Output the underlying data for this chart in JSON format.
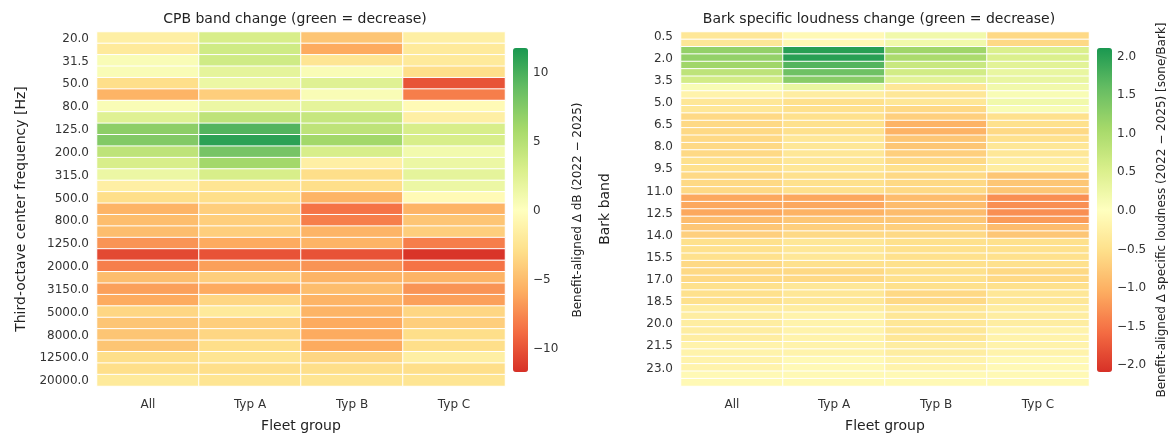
{
  "chart_data": [
    {
      "type": "heatmap",
      "title": "CPB band change (green = decrease)",
      "xlabel": "Fleet group",
      "ylabel": "Third-octave center frequency [Hz]",
      "clabel": "Benefit-aligned Δ dB (2022 − 2025)",
      "categories": [
        "All",
        "Typ A",
        "Typ B",
        "Typ C"
      ],
      "y_categories": [
        "20.0",
        null,
        "31.5",
        null,
        "50.0",
        null,
        "80.0",
        null,
        "125.0",
        null,
        "200.0",
        null,
        "315.0",
        null,
        "500.0",
        null,
        "800.0",
        null,
        "1250.0",
        null,
        "2000.0",
        null,
        "3150.0",
        null,
        "5000.0",
        null,
        "8000.0",
        null,
        "12500.0",
        null,
        "20000.0"
      ],
      "clim": [
        -11.7,
        11.7
      ],
      "cticks": [
        -10,
        -5,
        0,
        5,
        10
      ],
      "cells": [
        [
          -1.5,
          3,
          -4.5,
          -1.5
        ],
        [
          -2,
          3.5,
          -6,
          -2
        ],
        [
          0.5,
          3.5,
          -2.5,
          -2
        ],
        [
          0.5,
          2,
          0.5,
          -3
        ],
        [
          -3,
          1.5,
          2.5,
          -10
        ],
        [
          -5.5,
          -4,
          0.5,
          -8
        ],
        [
          0.5,
          1.5,
          2,
          -0.5
        ],
        [
          2.5,
          4.5,
          4,
          -1.5
        ],
        [
          7,
          9.5,
          4.5,
          3
        ],
        [
          7.5,
          11,
          6,
          3
        ],
        [
          4.5,
          8,
          3,
          1
        ],
        [
          3,
          6,
          -1.5,
          1.5
        ],
        [
          1.5,
          3,
          -3,
          2
        ],
        [
          -1.5,
          -2.5,
          -3,
          1.5
        ],
        [
          -3,
          -3,
          -5.5,
          -0.5
        ],
        [
          -5.5,
          -4,
          -8.5,
          -5.5
        ],
        [
          -5,
          -4,
          -8,
          -4.5
        ],
        [
          -5,
          -4,
          -5.5,
          -4
        ],
        [
          -7,
          -6,
          -5.5,
          -8
        ],
        [
          -10.5,
          -10,
          -10,
          -11.5
        ],
        [
          -8,
          -6.5,
          -7,
          -8.5
        ],
        [
          -5,
          -4,
          -5.5,
          -5.5
        ],
        [
          -6.5,
          -6,
          -5,
          -7
        ],
        [
          -6,
          -3.5,
          -5.5,
          -6.5
        ],
        [
          -3.5,
          -2,
          -5.5,
          -3.5
        ],
        [
          -4.5,
          -4,
          -6,
          -4
        ],
        [
          -4.5,
          -3.5,
          -6,
          -3
        ],
        [
          -4.5,
          -3,
          -6,
          -3
        ],
        [
          -3,
          -2.5,
          -3.5,
          -1.5
        ],
        [
          -3,
          -3,
          -3,
          -3
        ],
        [
          -2,
          -2.5,
          -2.5,
          -2.5
        ]
      ]
    },
    {
      "type": "heatmap",
      "title": "Bark specific loudness change (green = decrease)",
      "xlabel": "Fleet group",
      "ylabel": "Bark band",
      "clabel": "Benefit-aligned Δ specific loudness (2022 − 2025) [sone/Bark]",
      "categories": [
        "All",
        "Typ A",
        "Typ B",
        "Typ C"
      ],
      "y_categories": [
        "0.5",
        null,
        null,
        "2.0",
        null,
        null,
        "3.5",
        null,
        null,
        "5.0",
        null,
        null,
        "6.5",
        null,
        null,
        "8.0",
        null,
        null,
        "9.5",
        null,
        null,
        "11.0",
        null,
        null,
        "12.5",
        null,
        null,
        "14.0",
        null,
        null,
        "15.5",
        null,
        null,
        "17.0",
        null,
        null,
        "18.5",
        null,
        null,
        "20.0",
        null,
        null,
        "21.5",
        null,
        null,
        "23.0",
        null,
        null
      ],
      "clim": [
        -2.1,
        2.1
      ],
      "cticks": [
        {
          "value": -2,
          "label": "−2.0"
        },
        -1.5,
        {
          "value": -1,
          "label": "−1.0"
        },
        -0.5,
        {
          "value": 0,
          "label": "0.0"
        },
        0.5,
        {
          "value": 1,
          "label": "1.0"
        },
        1.5,
        {
          "value": 2,
          "label": "2.0"
        }
      ],
      "cells": [
        [
          -0.4,
          -0.1,
          0.2,
          -0.6
        ],
        [
          -0.4,
          -0.1,
          0.2,
          -0.6
        ],
        [
          1.2,
          2.0,
          1.1,
          0.5
        ],
        [
          1.2,
          2.0,
          1.0,
          0.5
        ],
        [
          1.1,
          1.7,
          0.7,
          0.4
        ],
        [
          0.8,
          1.5,
          0.6,
          0.3
        ],
        [
          0.6,
          1.3,
          0.4,
          0.3
        ],
        [
          0.1,
          0.3,
          -0.4,
          0.2
        ],
        [
          -0.2,
          -0.3,
          -0.4,
          0.1
        ],
        [
          -0.4,
          -0.5,
          -0.4,
          0.2
        ],
        [
          -0.4,
          -0.5,
          -0.6,
          0.1
        ],
        [
          -0.6,
          -0.5,
          -0.7,
          -0.5
        ],
        [
          -0.6,
          -0.5,
          -1.0,
          -0.5
        ],
        [
          -0.6,
          -0.5,
          -1.0,
          -0.6
        ],
        [
          -0.6,
          -0.4,
          -0.8,
          -0.5
        ],
        [
          -0.6,
          -0.4,
          -0.8,
          -0.4
        ],
        [
          -0.6,
          -0.4,
          -0.7,
          -0.4
        ],
        [
          -0.5,
          -0.4,
          -0.6,
          -0.3
        ],
        [
          -0.5,
          -0.4,
          -0.5,
          -0.3
        ],
        [
          -0.6,
          -0.5,
          -0.6,
          -0.8
        ],
        [
          -0.6,
          -0.5,
          -0.6,
          -0.8
        ],
        [
          -0.6,
          -0.5,
          -0.6,
          -0.8
        ],
        [
          -1.1,
          -1.1,
          -0.9,
          -1.3
        ],
        [
          -1.1,
          -1.1,
          -0.9,
          -1.3
        ],
        [
          -1.1,
          -1.0,
          -0.9,
          -1.3
        ],
        [
          -0.9,
          -0.8,
          -0.8,
          -1.2
        ],
        [
          -0.8,
          -0.7,
          -0.7,
          -0.9
        ],
        [
          -0.7,
          -0.6,
          -0.6,
          -0.8
        ],
        [
          -0.5,
          -0.4,
          -0.5,
          -0.5
        ],
        [
          -0.5,
          -0.4,
          -0.5,
          -0.5
        ],
        [
          -0.5,
          -0.4,
          -0.5,
          -0.5
        ],
        [
          -0.6,
          -0.5,
          -0.5,
          -0.5
        ],
        [
          -0.6,
          -0.6,
          -0.5,
          -0.6
        ],
        [
          -0.6,
          -0.6,
          -0.5,
          -0.6
        ],
        [
          -0.5,
          -0.4,
          -0.5,
          -0.5
        ],
        [
          -0.5,
          -0.4,
          -0.6,
          -0.4
        ],
        [
          -0.5,
          -0.4,
          -0.6,
          -0.4
        ],
        [
          -0.3,
          -0.3,
          -0.4,
          -0.3
        ],
        [
          -0.3,
          -0.2,
          -0.4,
          -0.3
        ],
        [
          -0.3,
          -0.2,
          -0.4,
          -0.3
        ],
        [
          -0.3,
          -0.2,
          -0.4,
          -0.2
        ],
        [
          -0.3,
          -0.2,
          -0.4,
          -0.2
        ],
        [
          -0.2,
          -0.2,
          -0.3,
          -0.2
        ],
        [
          -0.2,
          -0.2,
          -0.3,
          -0.2
        ],
        [
          -0.2,
          -0.1,
          -0.2,
          -0.1
        ],
        [
          -0.2,
          -0.1,
          -0.2,
          -0.1
        ],
        [
          -0.1,
          -0.1,
          -0.1,
          -0.1
        ],
        [
          -0.1,
          -0.1,
          -0.1,
          -0.1
        ]
      ]
    }
  ]
}
